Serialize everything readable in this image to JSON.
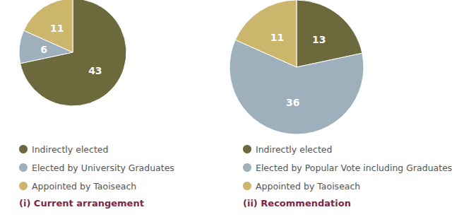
{
  "chart_data": [
    {
      "type": "pie",
      "title": "(i) Current arrangement",
      "categories": [
        "Indirectly elected",
        "Elected by University Graduates",
        "Appointed by Taoiseach"
      ],
      "values": [
        43,
        6,
        11
      ],
      "colors": [
        "#6c6a3c",
        "#9eb0bc",
        "#cbb66c"
      ],
      "data_labels": true,
      "legend": "bottom"
    },
    {
      "type": "pie",
      "title": "(ii) Recommendation",
      "categories": [
        "Indirectly elected",
        "Elected by Popular Vote including Graduates",
        "Appointed by Taoiseach"
      ],
      "values": [
        13,
        36,
        11
      ],
      "colors": [
        "#6c6a3c",
        "#9eb0bc",
        "#cbb66c"
      ],
      "data_labels": true,
      "legend": "bottom"
    }
  ]
}
